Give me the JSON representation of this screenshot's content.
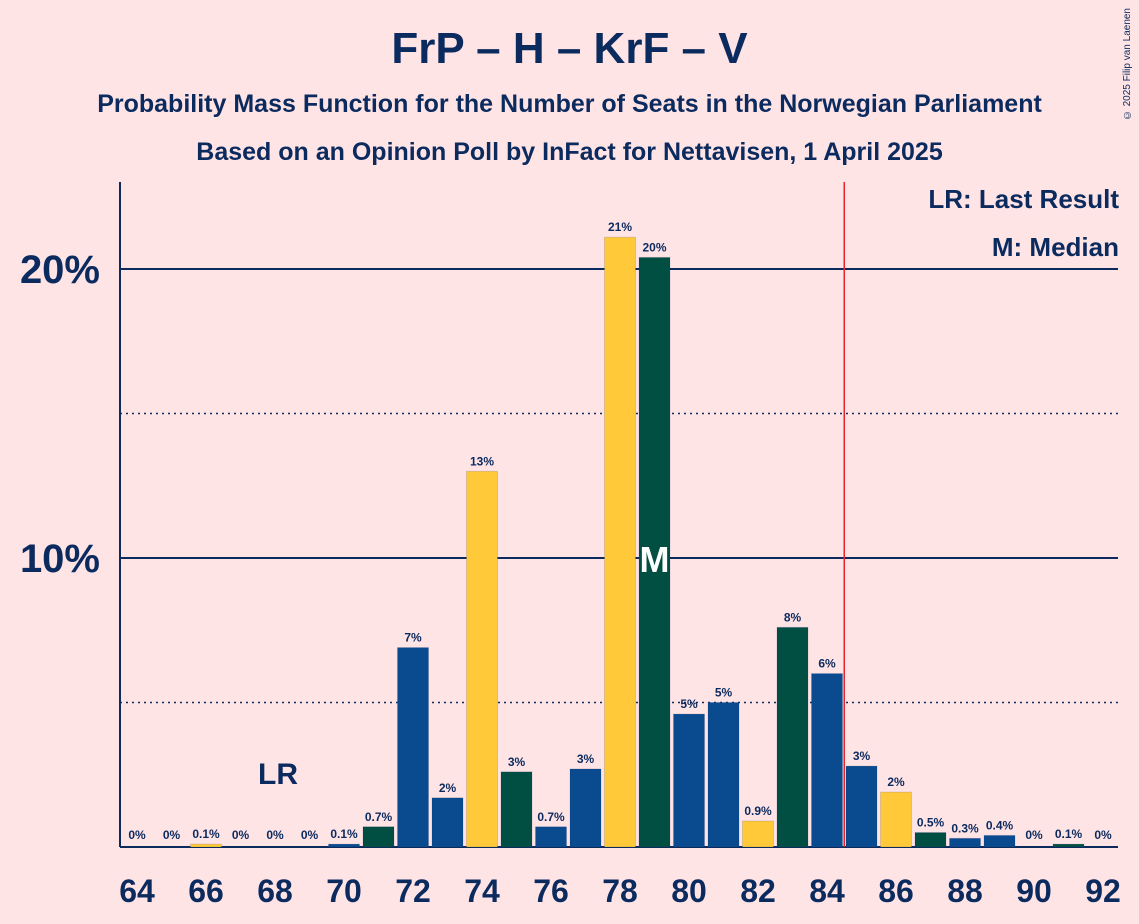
{
  "title": "FrP – H – KrF – V",
  "subtitle_1": "Probability Mass Function for the Number of Seats in the Norwegian Parliament",
  "subtitle_2": "Based on an Opinion Poll by InFact for Nettavisen, 1 April 2025",
  "credit": "© 2025 Filip van Laenen",
  "legend": {
    "last_result": "LR: Last Result",
    "median": "M: Median"
  },
  "colors": {
    "background": "#FFE4E6",
    "navy": "#0B2A5E",
    "blue": "#0A4A8F",
    "green": "#014F43",
    "yellow": "#FFC93A",
    "red": "#E8252B"
  },
  "chart_data": {
    "type": "bar",
    "x": [
      64,
      65,
      66,
      67,
      68,
      69,
      70,
      71,
      72,
      73,
      74,
      75,
      76,
      77,
      78,
      79,
      80,
      81,
      82,
      83,
      84,
      85,
      86,
      87,
      88,
      89,
      90,
      91,
      92
    ],
    "values": [
      0,
      0,
      0.1,
      0,
      0,
      0,
      0.1,
      0.7,
      6.9,
      1.7,
      13.0,
      2.6,
      0.7,
      2.7,
      21.1,
      20.4,
      4.6,
      5.0,
      0.9,
      7.6,
      6.0,
      2.8,
      1.9,
      0.5,
      0.3,
      0.4,
      0,
      0.1,
      0
    ],
    "labels": [
      "0%",
      "0%",
      "0.1%",
      "0%",
      "0%",
      "0%",
      "0.1%",
      "0.7%",
      "7%",
      "2%",
      "13%",
      "3%",
      "0.7%",
      "3%",
      "21%",
      "20%",
      "5%",
      "5%",
      "0.9%",
      "8%",
      "6%",
      "3%",
      "2%",
      "0.5%",
      "0.3%",
      "0.4%",
      "0%",
      "0.1%",
      "0%"
    ],
    "bar_colors": [
      "blue",
      "green",
      "yellow",
      "blue",
      "green",
      "yellow",
      "blue",
      "green",
      "blue",
      "blue",
      "yellow",
      "green",
      "blue",
      "blue",
      "yellow",
      "green",
      "blue",
      "blue",
      "yellow",
      "green",
      "blue",
      "blue",
      "yellow",
      "green",
      "blue",
      "blue",
      "yellow",
      "green",
      "blue"
    ],
    "xtick_labels": [
      "64",
      "66",
      "68",
      "70",
      "72",
      "74",
      "76",
      "78",
      "80",
      "82",
      "84",
      "86",
      "88",
      "90",
      "92"
    ],
    "ytick_labels": [
      "10%",
      "20%"
    ],
    "ylim": [
      0,
      23
    ],
    "gridlines_solid": [
      10,
      20
    ],
    "gridlines_dotted": [
      5,
      15
    ],
    "last_result": {
      "seat": 68,
      "label": "LR"
    },
    "median": {
      "seat": 79,
      "label": "M"
    },
    "majority_line": 85
  }
}
